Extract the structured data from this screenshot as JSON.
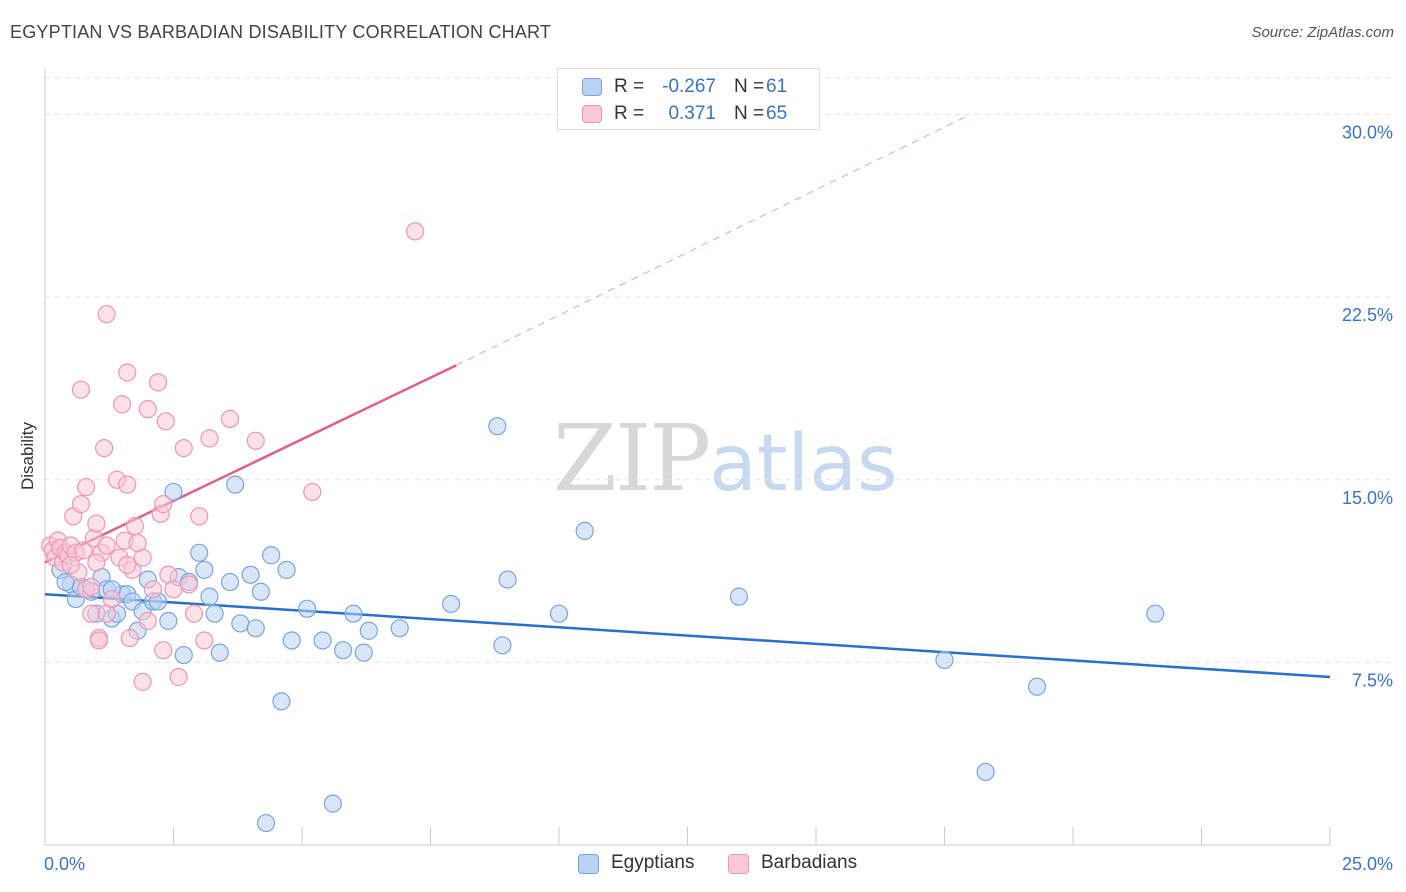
{
  "header": {
    "title": "EGYPTIAN VS BARBADIAN DISABILITY CORRELATION CHART",
    "source": "Source: ZipAtlas.com"
  },
  "watermark": {
    "zip": "ZIP",
    "atlas": "atlas"
  },
  "legend_top": {
    "rows": [
      {
        "r_label": "R =",
        "r_value": "-0.267",
        "n_label": "N =",
        "n_value": "61"
      },
      {
        "r_label": "R =",
        "r_value": "0.371",
        "n_label": "N =",
        "n_value": "65"
      }
    ]
  },
  "colors": {
    "egyptians_fill": "#b8d2f3",
    "egyptians_stroke": "#7aa6dc",
    "egyptians_line": "#2a6fcf",
    "barbadians_fill": "#f9c9d7",
    "barbadians_stroke": "#ee97b1",
    "barbadians_line": "#e0608a",
    "tick_label": "#3a74c4",
    "grid": "#e3e3e3"
  },
  "chart_data": {
    "type": "scatter",
    "title": "EGYPTIAN VS BARBADIAN DISABILITY CORRELATION CHART",
    "xlabel": "",
    "ylabel": "Disability",
    "xlim": [
      0,
      25
    ],
    "ylim": [
      0,
      31.5
    ],
    "x_tick_labels": [
      "0.0%",
      "25.0%"
    ],
    "y_ticks": [
      7.5,
      15.0,
      22.5,
      30.0
    ],
    "y_tick_labels": [
      "7.5%",
      "15.0%",
      "22.5%",
      "30.0%"
    ],
    "grid": true,
    "legend_position": "bottom",
    "series": [
      {
        "name": "Egyptians",
        "r": -0.267,
        "n": 61,
        "trend": {
          "x": [
            0,
            25
          ],
          "y": [
            10.3,
            6.9
          ],
          "dashed_extension": false
        },
        "points": [
          [
            0.3,
            11.3
          ],
          [
            0.5,
            10.7
          ],
          [
            0.6,
            10.1
          ],
          [
            0.7,
            10.6
          ],
          [
            0.8,
            10.5
          ],
          [
            0.9,
            10.4
          ],
          [
            1.0,
            9.5
          ],
          [
            1.1,
            11.0
          ],
          [
            1.2,
            10.5
          ],
          [
            1.3,
            9.3
          ],
          [
            1.4,
            9.5
          ],
          [
            1.5,
            10.3
          ],
          [
            1.6,
            10.3
          ],
          [
            1.7,
            10.0
          ],
          [
            1.8,
            8.8
          ],
          [
            1.9,
            9.6
          ],
          [
            2.0,
            10.9
          ],
          [
            2.1,
            10.0
          ],
          [
            2.2,
            10.0
          ],
          [
            2.4,
            9.2
          ],
          [
            2.5,
            14.5
          ],
          [
            2.6,
            11.0
          ],
          [
            2.7,
            7.8
          ],
          [
            2.8,
            10.8
          ],
          [
            3.0,
            12.0
          ],
          [
            3.1,
            11.3
          ],
          [
            3.2,
            10.2
          ],
          [
            3.3,
            9.5
          ],
          [
            3.4,
            7.9
          ],
          [
            3.6,
            10.8
          ],
          [
            3.7,
            14.8
          ],
          [
            3.8,
            9.1
          ],
          [
            4.0,
            11.1
          ],
          [
            4.1,
            8.9
          ],
          [
            4.2,
            10.4
          ],
          [
            4.4,
            11.9
          ],
          [
            4.6,
            5.9
          ],
          [
            4.7,
            11.3
          ],
          [
            4.8,
            8.4
          ],
          [
            5.1,
            9.7
          ],
          [
            5.4,
            8.4
          ],
          [
            5.6,
            1.7
          ],
          [
            5.8,
            8.0
          ],
          [
            6.0,
            9.5
          ],
          [
            6.2,
            7.9
          ],
          [
            6.3,
            8.8
          ],
          [
            6.9,
            8.9
          ],
          [
            7.9,
            9.9
          ],
          [
            8.8,
            17.2
          ],
          [
            8.9,
            8.2
          ],
          [
            9.0,
            10.9
          ],
          [
            10.0,
            9.5
          ],
          [
            10.5,
            12.9
          ],
          [
            13.5,
            10.2
          ],
          [
            17.5,
            7.6
          ],
          [
            18.3,
            3.0
          ],
          [
            19.3,
            6.5
          ],
          [
            21.6,
            9.5
          ],
          [
            4.3,
            0.9
          ],
          [
            0.4,
            10.8
          ],
          [
            1.3,
            10.5
          ]
        ]
      },
      {
        "name": "Barbadians",
        "r": 0.371,
        "n": 65,
        "trend": {
          "x": [
            0,
            8
          ],
          "y": [
            11.6,
            19.7
          ],
          "dashed_extension": true,
          "dashed_to": {
            "x": 18,
            "y": 30.0
          }
        },
        "points": [
          [
            0.1,
            12.3
          ],
          [
            0.15,
            12.1
          ],
          [
            0.2,
            11.8
          ],
          [
            0.25,
            12.5
          ],
          [
            0.3,
            12.2
          ],
          [
            0.35,
            11.6
          ],
          [
            0.4,
            12.0
          ],
          [
            0.45,
            11.9
          ],
          [
            0.5,
            12.3
          ],
          [
            0.55,
            13.5
          ],
          [
            0.6,
            12.0
          ],
          [
            0.65,
            11.2
          ],
          [
            0.7,
            14.0
          ],
          [
            0.75,
            12.1
          ],
          [
            0.8,
            10.5
          ],
          [
            0.7,
            18.7
          ],
          [
            0.8,
            14.7
          ],
          [
            0.9,
            9.5
          ],
          [
            0.95,
            12.6
          ],
          [
            1.0,
            13.2
          ],
          [
            1.05,
            8.5
          ],
          [
            1.1,
            12.0
          ],
          [
            1.15,
            16.3
          ],
          [
            1.2,
            9.5
          ],
          [
            1.3,
            10.1
          ],
          [
            1.4,
            15.0
          ],
          [
            1.45,
            11.8
          ],
          [
            1.5,
            18.1
          ],
          [
            1.55,
            12.5
          ],
          [
            1.6,
            14.8
          ],
          [
            1.65,
            8.5
          ],
          [
            1.7,
            11.3
          ],
          [
            1.75,
            13.1
          ],
          [
            1.2,
            21.8
          ],
          [
            1.6,
            19.4
          ],
          [
            1.9,
            11.8
          ],
          [
            2.0,
            17.9
          ],
          [
            2.1,
            10.5
          ],
          [
            2.2,
            19.0
          ],
          [
            2.25,
            13.6
          ],
          [
            2.3,
            14.0
          ],
          [
            2.35,
            17.4
          ],
          [
            2.4,
            11.1
          ],
          [
            2.5,
            10.5
          ],
          [
            2.6,
            6.9
          ],
          [
            2.7,
            16.3
          ],
          [
            2.8,
            10.7
          ],
          [
            2.9,
            9.5
          ],
          [
            3.0,
            13.5
          ],
          [
            3.1,
            8.4
          ],
          [
            3.2,
            16.7
          ],
          [
            3.6,
            17.5
          ],
          [
            4.1,
            16.6
          ],
          [
            5.2,
            14.5
          ],
          [
            7.2,
            25.2
          ],
          [
            1.9,
            6.7
          ],
          [
            2.0,
            9.2
          ],
          [
            2.3,
            8.0
          ],
          [
            1.0,
            11.6
          ],
          [
            1.2,
            12.3
          ],
          [
            0.5,
            11.5
          ],
          [
            0.9,
            10.6
          ],
          [
            1.8,
            12.4
          ],
          [
            1.6,
            11.5
          ],
          [
            1.05,
            8.4
          ]
        ]
      }
    ]
  },
  "legend_bottom": {
    "items": [
      {
        "label": "Egyptians"
      },
      {
        "label": "Barbadians"
      }
    ]
  }
}
